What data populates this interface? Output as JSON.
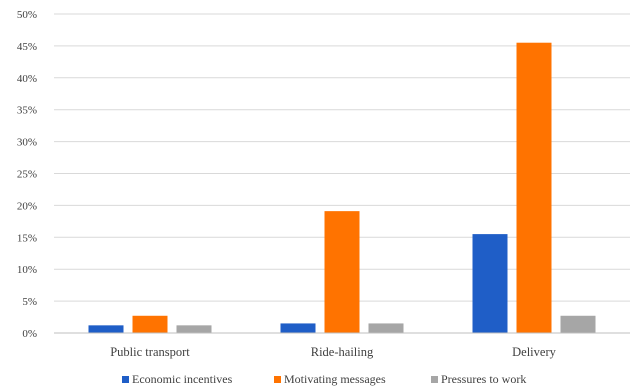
{
  "chart_data": {
    "type": "bar",
    "categories": [
      "Public transport",
      "Ride-hailing",
      "Delivery"
    ],
    "series": [
      {
        "name": "Economic incentives",
        "values": [
          1.2,
          1.5,
          15.5
        ],
        "color": "#1f5ec7"
      },
      {
        "name": "Motivating messages",
        "values": [
          2.7,
          19.1,
          45.5
        ],
        "color": "#ff7300"
      },
      {
        "name": "Pressures to work",
        "values": [
          1.2,
          1.5,
          2.7
        ],
        "color": "#a6a6a6"
      }
    ],
    "ylim": [
      0,
      50
    ],
    "yticks": [
      "0%",
      "5%",
      "10%",
      "15%",
      "20%",
      "25%",
      "30%",
      "35%",
      "40%",
      "45%",
      "50%"
    ],
    "grid": true,
    "legend_position": "bottom"
  }
}
